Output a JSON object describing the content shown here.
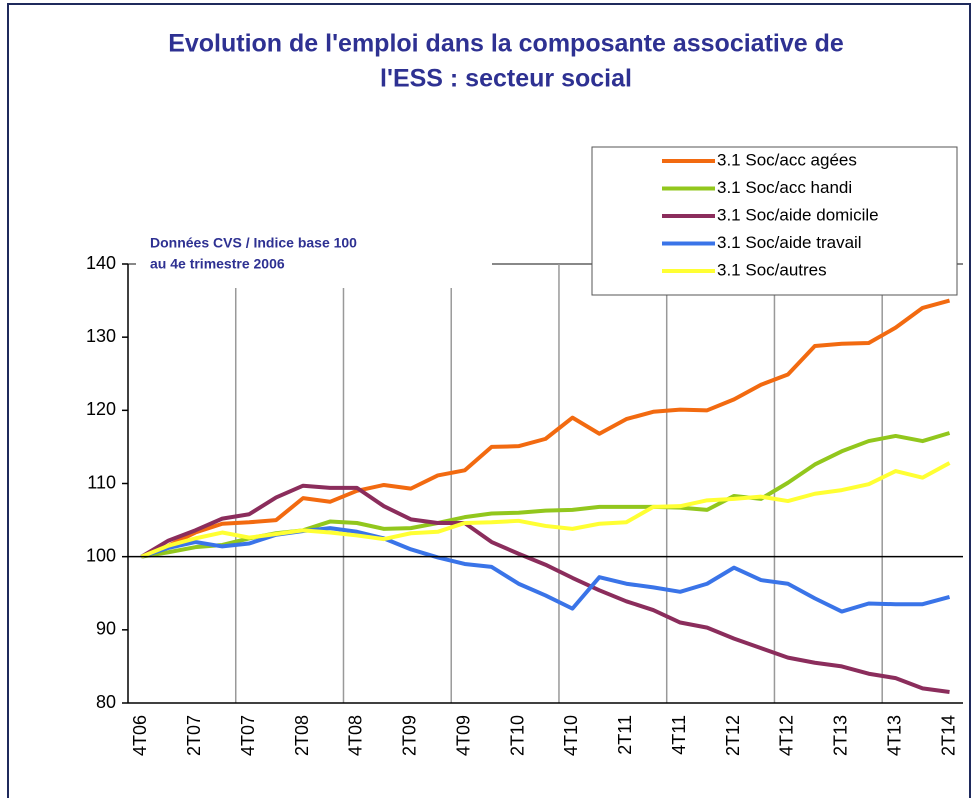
{
  "chart_data": {
    "type": "line",
    "title": [
      "Evolution de l'emploi dans la composante associative de",
      "l'ESS : secteur social"
    ],
    "note": [
      "Données CVS / Indice base 100",
      "au 4e trimestre 2006"
    ],
    "categories": [
      "4T06",
      null,
      "2T07",
      null,
      "4T07",
      null,
      "2T08",
      null,
      "4T08",
      null,
      "2T09",
      null,
      "4T09",
      null,
      "2T10",
      null,
      "4T10",
      null,
      "2T11",
      null,
      "4T11",
      null,
      "2T12",
      null,
      "4T12",
      null,
      "2T13",
      null,
      "4T13",
      null,
      "2T14"
    ],
    "series": [
      {
        "name": "3.1 Soc/acc agées",
        "color": "#f26a10",
        "values": [
          100,
          101.5,
          103.3,
          104.5,
          104.7,
          105,
          108,
          107.5,
          109,
          109.8,
          109.3,
          111.1,
          111.8,
          115,
          115.1,
          116.1,
          119,
          116.8,
          118.8,
          119.8,
          120.1,
          120,
          121.5,
          123.5,
          124.9,
          128.8,
          129.1,
          129.2,
          131.3,
          134,
          135
        ]
      },
      {
        "name": "3.1 Soc/acc handi",
        "color": "#92c71d",
        "values": [
          100,
          100.6,
          101.3,
          101.6,
          102.5,
          103.2,
          103.6,
          104.8,
          104.6,
          103.8,
          103.9,
          104.6,
          105.4,
          105.9,
          106,
          106.3,
          106.4,
          106.8,
          106.8,
          106.8,
          106.7,
          106.4,
          108.3,
          107.9,
          110.1,
          112.6,
          114.4,
          115.8,
          116.5,
          115.8,
          116.9
        ]
      },
      {
        "name": "3.1 Soc/aide domicile",
        "color": "#8b2d5c",
        "values": [
          100,
          102.2,
          103.6,
          105.2,
          105.8,
          108.1,
          109.7,
          109.4,
          109.4,
          106.9,
          105.1,
          104.6,
          104.6,
          102,
          100.4,
          98.9,
          97.1,
          95.4,
          93.9,
          92.7,
          91,
          90.3,
          88.8,
          87.5,
          86.2,
          85.5,
          85,
          84,
          83.4,
          82,
          81.5
        ]
      },
      {
        "name": "3.1 Soc/aide travail",
        "color": "#3a74e8",
        "values": [
          100,
          101.2,
          102,
          101.4,
          101.8,
          103,
          103.5,
          103.9,
          103.4,
          102.5,
          101,
          99.9,
          99,
          98.6,
          96.3,
          94.7,
          92.9,
          97.2,
          96.3,
          95.8,
          95.2,
          96.3,
          98.5,
          96.8,
          96.3,
          94.3,
          92.5,
          93.6,
          93.5,
          93.5,
          94.5
        ]
      },
      {
        "name": "3.1 Soc/autres",
        "color": "#ffff33",
        "values": [
          100,
          101.5,
          102.5,
          103.3,
          102.6,
          103.1,
          103.6,
          103.3,
          102.9,
          102.4,
          103.2,
          103.4,
          104.6,
          104.7,
          104.9,
          104.2,
          103.8,
          104.5,
          104.7,
          106.8,
          106.9,
          107.7,
          107.9,
          108.2,
          107.6,
          108.6,
          109.1,
          109.9,
          111.7,
          110.8,
          112.8
        ]
      }
    ],
    "ylim": [
      80,
      140
    ],
    "yticks": [
      80,
      90,
      100,
      110,
      120,
      130,
      140
    ],
    "x_axis_at": 100,
    "legend": "top-right"
  }
}
